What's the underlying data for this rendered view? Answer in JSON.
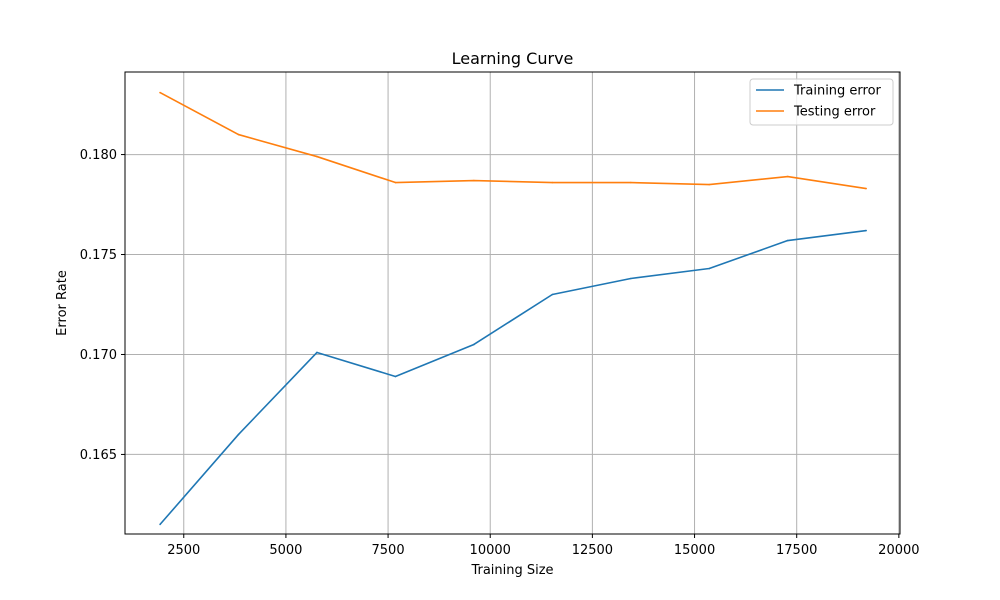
{
  "chart_data": {
    "type": "line",
    "title": "Learning Curve",
    "xlabel": "Training Size",
    "ylabel": "Error Rate",
    "xlim": [
      1062,
      20028
    ],
    "ylim": [
      0.16102,
      0.18413
    ],
    "xticks": [
      2500,
      5000,
      7500,
      10000,
      12500,
      15000,
      17500,
      20000
    ],
    "xtick_labels": [
      "2500",
      "5000",
      "7500",
      "10000",
      "12500",
      "15000",
      "17500",
      "20000"
    ],
    "yticks": [
      0.165,
      0.17,
      0.175,
      0.18
    ],
    "ytick_labels": [
      "0.165",
      "0.170",
      "0.175",
      "0.180"
    ],
    "grid": true,
    "legend_position": "top-right",
    "x": [
      1920,
      3840,
      5760,
      7680,
      9600,
      11520,
      13440,
      15360,
      17280,
      19200
    ],
    "series": [
      {
        "name": "Training error",
        "color": "#1f77b4",
        "values": [
          0.1615,
          0.166,
          0.1701,
          0.1689,
          0.1705,
          0.173,
          0.1738,
          0.1743,
          0.1757,
          0.1762
        ]
      },
      {
        "name": "Testing error",
        "color": "#ff7f0e",
        "values": [
          0.1831,
          0.181,
          0.1799,
          0.1786,
          0.1787,
          0.1786,
          0.1786,
          0.1785,
          0.1789,
          0.1783
        ]
      }
    ]
  }
}
